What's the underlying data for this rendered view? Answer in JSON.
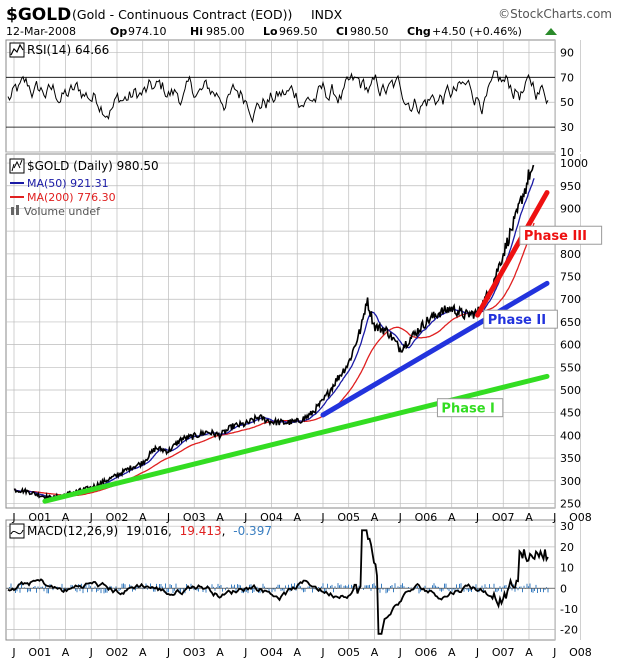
{
  "header": {
    "symbol": "$GOLD",
    "name": "(Gold - Continuous Contract (EOD))",
    "exchange": "INDX",
    "source": "©StockCharts.com",
    "date": "12-Mar-2008",
    "op_label": "Op",
    "op": "974.10",
    "hi_label": "Hi",
    "hi": "985.00",
    "lo_label": "Lo",
    "lo": "969.50",
    "cl_label": "Cl",
    "cl": "980.50",
    "chg_label": "Chg",
    "chg": "+4.50 (+0.46%)"
  },
  "colors": {
    "price": "#000000",
    "ma50": "#1a1aa6",
    "ma200": "#e02020",
    "phase1": "#33dd22",
    "phase2": "#2233dd",
    "phase3": "#ee1111",
    "grid": "#bcbcbc",
    "macd_hist": "#3a7ec0"
  },
  "chart_data": [
    {
      "type": "line",
      "panel": "RSI",
      "legend": "RSI(14) 64.66",
      "series": [
        {
          "name": "RSI(14)",
          "last": 64.66
        }
      ],
      "ylim": [
        10,
        100
      ],
      "y_ticks": [
        10,
        30,
        50,
        70,
        90
      ],
      "reference_lines": [
        30,
        70
      ]
    },
    {
      "type": "line",
      "panel": "Price",
      "ylim": [
        240,
        1020
      ],
      "y_ticks": [
        250,
        300,
        350,
        400,
        450,
        500,
        550,
        600,
        650,
        700,
        750,
        800,
        850,
        900,
        950,
        1000
      ],
      "x_ticks": [
        "J",
        "O01",
        "A",
        "J",
        "O02",
        "A",
        "J",
        "O03",
        "A",
        "J",
        "O04",
        "A",
        "J",
        "O05",
        "A",
        "J",
        "O06",
        "A",
        "J",
        "O07",
        "A",
        "J",
        "O08"
      ],
      "legend": [
        {
          "label": "$GOLD (Daily) 980.50",
          "color": "#000000"
        },
        {
          "label": "MA(50) 921.31",
          "color": "#1a1aa6"
        },
        {
          "label": "MA(200) 776.30",
          "color": "#e02020"
        },
        {
          "label": "Volume undef",
          "color": "#666666"
        }
      ],
      "price_anchors": [
        {
          "t": 0.0,
          "v": 280
        },
        {
          "t": 0.25,
          "v": 277
        },
        {
          "t": 0.5,
          "v": 268
        },
        {
          "t": 0.75,
          "v": 262
        },
        {
          "t": 1.0,
          "v": 270
        },
        {
          "t": 1.5,
          "v": 285
        },
        {
          "t": 2.0,
          "v": 312
        },
        {
          "t": 2.25,
          "v": 328
        },
        {
          "t": 2.5,
          "v": 340
        },
        {
          "t": 2.75,
          "v": 372
        },
        {
          "t": 3.0,
          "v": 365
        },
        {
          "t": 3.25,
          "v": 392
        },
        {
          "t": 3.5,
          "v": 398
        },
        {
          "t": 3.75,
          "v": 408
        },
        {
          "t": 4.0,
          "v": 400
        },
        {
          "t": 4.25,
          "v": 420
        },
        {
          "t": 4.5,
          "v": 425
        },
        {
          "t": 4.75,
          "v": 440
        },
        {
          "t": 5.0,
          "v": 430
        },
        {
          "t": 5.25,
          "v": 428
        },
        {
          "t": 5.5,
          "v": 430
        },
        {
          "t": 5.75,
          "v": 445
        },
        {
          "t": 6.0,
          "v": 475
        },
        {
          "t": 6.25,
          "v": 520
        },
        {
          "t": 6.5,
          "v": 560
        },
        {
          "t": 6.75,
          "v": 640
        },
        {
          "t": 6.85,
          "v": 700
        },
        {
          "t": 7.0,
          "v": 640
        },
        {
          "t": 7.25,
          "v": 630
        },
        {
          "t": 7.5,
          "v": 590
        },
        {
          "t": 7.75,
          "v": 620
        },
        {
          "t": 8.0,
          "v": 650
        },
        {
          "t": 8.25,
          "v": 670
        },
        {
          "t": 8.5,
          "v": 680
        },
        {
          "t": 8.75,
          "v": 665
        },
        {
          "t": 9.0,
          "v": 670
        },
        {
          "t": 9.25,
          "v": 720
        },
        {
          "t": 9.5,
          "v": 800
        },
        {
          "t": 9.65,
          "v": 850
        },
        {
          "t": 9.75,
          "v": 880
        },
        {
          "t": 9.85,
          "v": 920
        },
        {
          "t": 9.95,
          "v": 950
        },
        {
          "t": 10.0,
          "v": 975
        },
        {
          "t": 10.1,
          "v": 980
        }
      ],
      "time_axis": {
        "t0_label": "J",
        "t0": 0,
        "t_end": 10.35,
        "note": "t = quarters from first tick"
      },
      "trendlines": [
        {
          "name": "Phase I",
          "from": {
            "t": 0.6,
            "v": 255
          },
          "to": {
            "t": 10.35,
            "v": 530
          },
          "color": "#33dd22"
        },
        {
          "name": "Phase II",
          "from": {
            "t": 6.0,
            "v": 445
          },
          "to": {
            "t": 10.35,
            "v": 735
          },
          "color": "#2233dd"
        },
        {
          "name": "Phase III",
          "from": {
            "t": 9.0,
            "v": 665
          },
          "to": {
            "t": 10.35,
            "v": 935
          },
          "color": "#ee1111"
        }
      ],
      "annotations": [
        {
          "text": "Phase I",
          "color": "#33dd22",
          "near": {
            "t": 8.3,
            "v": 450
          }
        },
        {
          "text": "Phase II",
          "color": "#2233dd",
          "near": {
            "t": 9.2,
            "v": 645
          }
        },
        {
          "text": "Phase III",
          "color": "#ee1111",
          "near": {
            "t": 9.9,
            "v": 830
          }
        }
      ]
    },
    {
      "type": "line",
      "panel": "MACD",
      "legend": "MACD(12,26,9) 19.016, 19.413, -0.397",
      "series": [
        {
          "name": "MACD",
          "last": 19.016
        },
        {
          "name": "Signal",
          "last": 19.413
        },
        {
          "name": "Histogram",
          "last": -0.397
        }
      ],
      "ylim": [
        -25,
        33
      ],
      "y_ticks": [
        -20,
        -10,
        0,
        10,
        20,
        30
      ]
    }
  ],
  "macd_legend": {
    "prefix": "MACD(12,26,9)",
    "v1": "19.016",
    "sep1": ",",
    "v2": "19.413",
    "sep2": ",",
    "v3": "-0.397"
  }
}
